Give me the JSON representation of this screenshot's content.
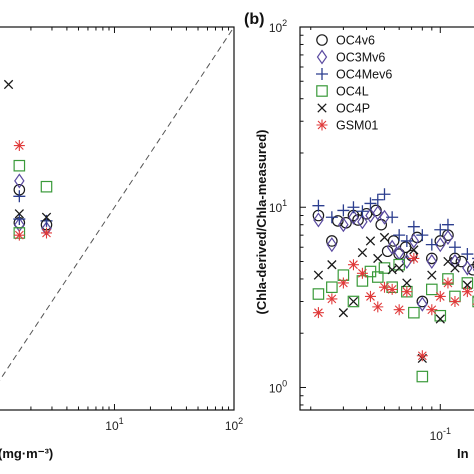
{
  "chart_data": [
    {
      "type": "scatter",
      "panel_label": "",
      "xlabel": "(mg·m⁻³)",
      "xscale": "log",
      "xlim": [
        0.75,
        100
      ],
      "ylim": [
        0.75,
        100
      ],
      "x_ticks": [
        {
          "base": "10",
          "exp": "1"
        },
        {
          "base": "10",
          "exp": "2"
        }
      ],
      "reference_line": "1:1 dashed",
      "series": [
        {
          "name": "OC4v6",
          "x": [
            1.6,
            1.6,
            2.7
          ],
          "y": [
            12.5,
            8.2,
            8.0
          ]
        },
        {
          "name": "OC3Mv6",
          "x": [
            1.6,
            1.6,
            2.7
          ],
          "y": [
            14.0,
            8.0,
            7.6
          ]
        },
        {
          "name": "OC4Mev6",
          "x": [
            1.6,
            1.6,
            2.7
          ],
          "y": [
            11.5,
            8.6,
            8.4
          ]
        },
        {
          "name": "OC4L",
          "x": [
            1.6,
            1.6,
            2.7
          ],
          "y": [
            17.0,
            7.2,
            13.0
          ]
        },
        {
          "name": "OC4P",
          "x": [
            1.3,
            1.6,
            2.7
          ],
          "y": [
            48.0,
            9.2,
            8.8
          ]
        },
        {
          "name": "GSM01",
          "x": [
            1.6,
            1.6,
            2.7
          ],
          "y": [
            22.0,
            7.0,
            7.2
          ]
        }
      ]
    },
    {
      "type": "scatter",
      "panel_label": "(b)",
      "ylabel": "(Chla-derived/Chla-measured)",
      "xlabel": "In",
      "xscale": "log",
      "yscale": "log",
      "xlim": [
        0.0175,
        0.21
      ],
      "ylim": [
        0.75,
        100
      ],
      "y_ticks": [
        {
          "value": 1,
          "base": "10",
          "exp": "0"
        },
        {
          "value": 10,
          "base": "10",
          "exp": "1"
        },
        {
          "value": 100,
          "base": "10",
          "exp": "2"
        }
      ],
      "x_ticks": [
        {
          "value": 0.1,
          "base": "10",
          "exp": "-1"
        }
      ],
      "legend": "top-right",
      "series": [
        {
          "name": "OC4v6",
          "color": "#1a1a1a",
          "marker": "circle",
          "x": [
            0.022,
            0.026,
            0.028,
            0.031,
            0.034,
            0.036,
            0.04,
            0.045,
            0.048,
            0.052,
            0.056,
            0.06,
            0.065,
            0.07,
            0.075,
            0.08,
            0.09,
            0.1,
            0.11,
            0.12,
            0.13,
            0.15,
            0.16,
            0.18
          ],
          "y": [
            9.0,
            6.5,
            8.4,
            8.2,
            9.0,
            8.5,
            9.2,
            9.6,
            8.0,
            5.7,
            6.5,
            5.5,
            6.0,
            5.4,
            6.8,
            3.0,
            5.2,
            6.5,
            7.0,
            5.2,
            5.0,
            4.5,
            4.8,
            4.0
          ]
        },
        {
          "name": "OC3Mv6",
          "color": "#5a4aa0",
          "marker": "diamond",
          "x": [
            0.022,
            0.026,
            0.03,
            0.034,
            0.038,
            0.042,
            0.046,
            0.05,
            0.055,
            0.06,
            0.066,
            0.072,
            0.08,
            0.09,
            0.1,
            0.11,
            0.12,
            0.14,
            0.16,
            0.18
          ],
          "y": [
            8.5,
            6.2,
            8.0,
            8.8,
            8.3,
            9.0,
            9.3,
            8.8,
            6.0,
            5.6,
            5.0,
            6.5,
            2.9,
            5.0,
            6.2,
            6.8,
            5.0,
            4.6,
            4.5,
            4.2
          ]
        },
        {
          "name": "OC4Mev6",
          "color": "#2c3e8f",
          "marker": "plus",
          "x": [
            0.022,
            0.026,
            0.03,
            0.034,
            0.038,
            0.042,
            0.046,
            0.05,
            0.055,
            0.06,
            0.066,
            0.072,
            0.08,
            0.09,
            0.1,
            0.11,
            0.12,
            0.14,
            0.16,
            0.18
          ],
          "y": [
            10.2,
            8.8,
            9.6,
            10.0,
            9.5,
            10.5,
            11.0,
            11.8,
            8.8,
            7.0,
            6.5,
            7.8,
            7.0,
            6.2,
            7.5,
            8.0,
            6.0,
            5.5,
            5.2,
            5.0
          ]
        },
        {
          "name": "OC4L",
          "color": "#3a9a3a",
          "marker": "square",
          "x": [
            0.022,
            0.026,
            0.03,
            0.034,
            0.038,
            0.042,
            0.046,
            0.05,
            0.055,
            0.06,
            0.066,
            0.072,
            0.08,
            0.09,
            0.1,
            0.11,
            0.12,
            0.14,
            0.16,
            0.18
          ],
          "y": [
            3.3,
            3.6,
            4.2,
            3.0,
            3.9,
            4.4,
            4.1,
            4.6,
            3.6,
            4.8,
            3.4,
            2.6,
            1.15,
            3.5,
            2.5,
            4.0,
            3.2,
            3.8,
            3.0,
            3.5
          ]
        },
        {
          "name": "OC4P",
          "color": "#1a1a1a",
          "marker": "cross",
          "x": [
            0.022,
            0.026,
            0.03,
            0.034,
            0.038,
            0.042,
            0.046,
            0.05,
            0.055,
            0.06,
            0.066,
            0.072,
            0.08,
            0.09,
            0.1,
            0.11,
            0.12,
            0.14,
            0.16,
            0.18
          ],
          "y": [
            4.2,
            4.8,
            2.6,
            3.0,
            5.6,
            6.5,
            5.2,
            6.8,
            4.5,
            4.6,
            3.8,
            5.8,
            1.45,
            4.2,
            2.4,
            5.0,
            4.6,
            3.7,
            3.3,
            3.0
          ]
        },
        {
          "name": "GSM01",
          "color": "#e03a3a",
          "marker": "asterisk",
          "x": [
            0.022,
            0.026,
            0.03,
            0.034,
            0.038,
            0.042,
            0.046,
            0.05,
            0.055,
            0.06,
            0.066,
            0.072,
            0.08,
            0.09,
            0.1,
            0.11,
            0.12,
            0.14,
            0.16,
            0.18
          ],
          "y": [
            2.6,
            3.1,
            3.8,
            4.8,
            4.3,
            3.2,
            2.8,
            3.6,
            3.5,
            2.7,
            3.4,
            5.2,
            1.5,
            2.7,
            3.2,
            3.8,
            3.0,
            3.4,
            2.9,
            2.6
          ]
        }
      ]
    }
  ]
}
